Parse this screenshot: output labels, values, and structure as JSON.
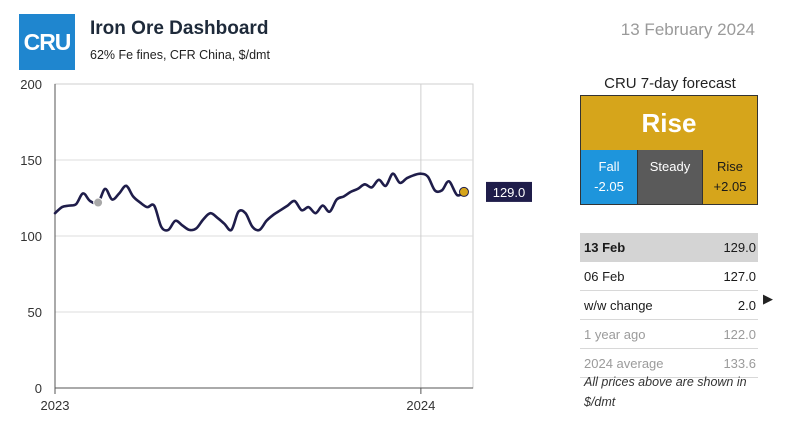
{
  "header": {
    "logo_text": "CRU",
    "title": "Iron Ore Dashboard",
    "subtitle": "62% Fe fines, CFR China, $/dmt",
    "date": "13 February 2024"
  },
  "forecast": {
    "heading": "CRU 7-day forecast",
    "outcome": "Rise",
    "fall_label": "Fall",
    "fall_value": "-2.05",
    "steady_label": "Steady",
    "rise_label": "Rise",
    "rise_value": "+2.05"
  },
  "prices": [
    {
      "label": "13 Feb",
      "value": "129.0"
    },
    {
      "label": "06 Feb",
      "value": "127.0"
    },
    {
      "label": "w/w change",
      "value": "2.0"
    },
    {
      "label": "1 year ago",
      "value": "122.0"
    },
    {
      "label": "2024 average",
      "value": "133.6"
    }
  ],
  "note": "All prices above are shown in $/dmt",
  "colors": {
    "brand_blue": "#1f86cf",
    "line": "#1f1d4a",
    "rise_gold": "#d6a51b",
    "fall_blue": "#1e95dc",
    "steady_grey": "#5a5a5a",
    "marker_grey": "#a8a8a8"
  },
  "icons": {
    "change_direction": "right-triangle-icon"
  },
  "chart_data": {
    "type": "line",
    "title": "",
    "xlabel": "",
    "ylabel": "",
    "ylim": [
      0,
      200
    ],
    "yticks": [
      "0",
      "50",
      "100",
      "150",
      "200"
    ],
    "xticks": [
      {
        "x": "2023-01-01",
        "label": "2023"
      },
      {
        "x": "2024-01-01",
        "label": "2024"
      }
    ],
    "xlim": [
      "2023-01-01",
      "2024-02-22"
    ],
    "grid": true,
    "end_label": "129.0",
    "highlight_year_ago": {
      "x": "2023-02-13",
      "y": 122.0
    },
    "highlight_latest": {
      "x": "2024-02-13",
      "y": 129.0
    },
    "series": [
      {
        "x": [
          "2023-01-01",
          "2023-01-08",
          "2023-01-15",
          "2023-01-22",
          "2023-01-29",
          "2023-02-05",
          "2023-02-13",
          "2023-02-20",
          "2023-02-27",
          "2023-03-06",
          "2023-03-13",
          "2023-03-20",
          "2023-03-27",
          "2023-04-03",
          "2023-04-10",
          "2023-04-17",
          "2023-04-24",
          "2023-05-01",
          "2023-05-08",
          "2023-05-15",
          "2023-05-22",
          "2023-05-29",
          "2023-06-05",
          "2023-06-12",
          "2023-06-19",
          "2023-06-26",
          "2023-07-03",
          "2023-07-10",
          "2023-07-17",
          "2023-07-24",
          "2023-07-31",
          "2023-08-07",
          "2023-08-14",
          "2023-08-21",
          "2023-08-28",
          "2023-09-04",
          "2023-09-11",
          "2023-09-18",
          "2023-09-25",
          "2023-10-02",
          "2023-10-09",
          "2023-10-16",
          "2023-10-23",
          "2023-10-30",
          "2023-11-06",
          "2023-11-13",
          "2023-11-20",
          "2023-11-27",
          "2023-12-04",
          "2023-12-11",
          "2023-12-18",
          "2023-12-25",
          "2024-01-01",
          "2024-01-08",
          "2024-01-15",
          "2024-01-22",
          "2024-01-29",
          "2024-02-06",
          "2024-02-13"
        ],
        "values": [
          115,
          119,
          120,
          121,
          128,
          123,
          122,
          131,
          124,
          128,
          133,
          126,
          122,
          119,
          120,
          106,
          104,
          110,
          107,
          104,
          105,
          111,
          115,
          112,
          108,
          104,
          116,
          115,
          106,
          104,
          110,
          114,
          117,
          120,
          123,
          117,
          119,
          115,
          120,
          116,
          124,
          126,
          129,
          131,
          134,
          132,
          137,
          133,
          141,
          135,
          138,
          140,
          141,
          139,
          130,
          130,
          136,
          127,
          129
        ]
      }
    ]
  }
}
